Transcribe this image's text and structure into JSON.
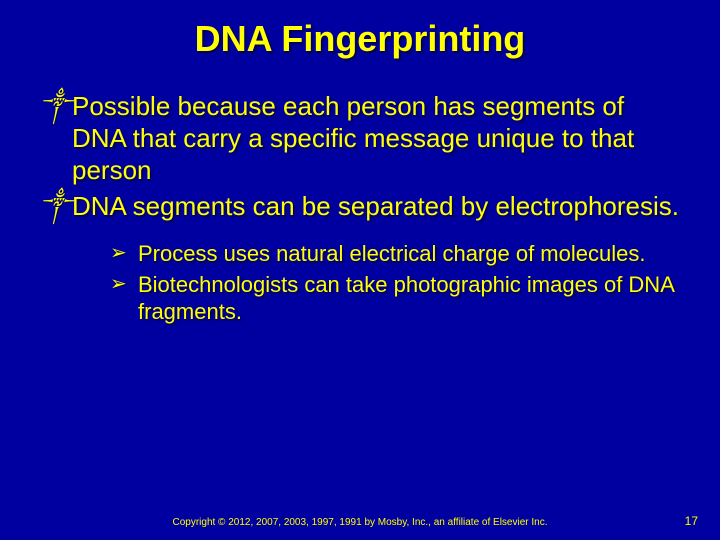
{
  "title": "DNA Fingerprinting",
  "bullets": [
    "Possible because each person has segments of DNA that carry a specific message unique to that person",
    "DNA segments can be separated by electrophoresis."
  ],
  "subbullets": [
    "Process uses natural electrical charge of molecules.",
    "Biotechnologists can take photographic images of DNA fragments."
  ],
  "icons": {
    "main_bullet": "༒",
    "sub_bullet": "➢"
  },
  "footer": "Copyright © 2012, 2007, 2003, 1997, 1991 by Mosby, Inc., an affiliate of Elsevier Inc.",
  "page_number": "17",
  "colors": {
    "background": "#0000a0",
    "text": "#ffff00"
  }
}
